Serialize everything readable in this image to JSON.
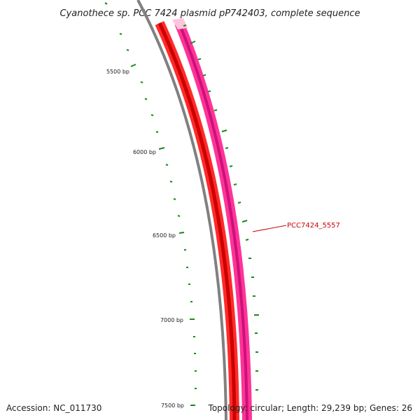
{
  "title": "Cyanothece sp. PCC 7424 plasmid pP742403, complete sequence",
  "ticks": [
    {
      "label": "5500 bp"
    },
    {
      "label": "6000 bp"
    },
    {
      "label": "6500 bp"
    },
    {
      "label": "7000 bp"
    },
    {
      "label": "7500 bp"
    }
  ],
  "gene": {
    "label": "PCC7424_5557"
  },
  "footer": {
    "accession": "Accession: NC_011730",
    "summary": "Topology: circular; Length: 29,239 bp; Genes: 26"
  },
  "colors": {
    "backbone": "#808080",
    "cds_band": "#ff0000",
    "gene_band": "#ff1493",
    "tick": "#1a8a1a",
    "label": "#cc0000"
  }
}
